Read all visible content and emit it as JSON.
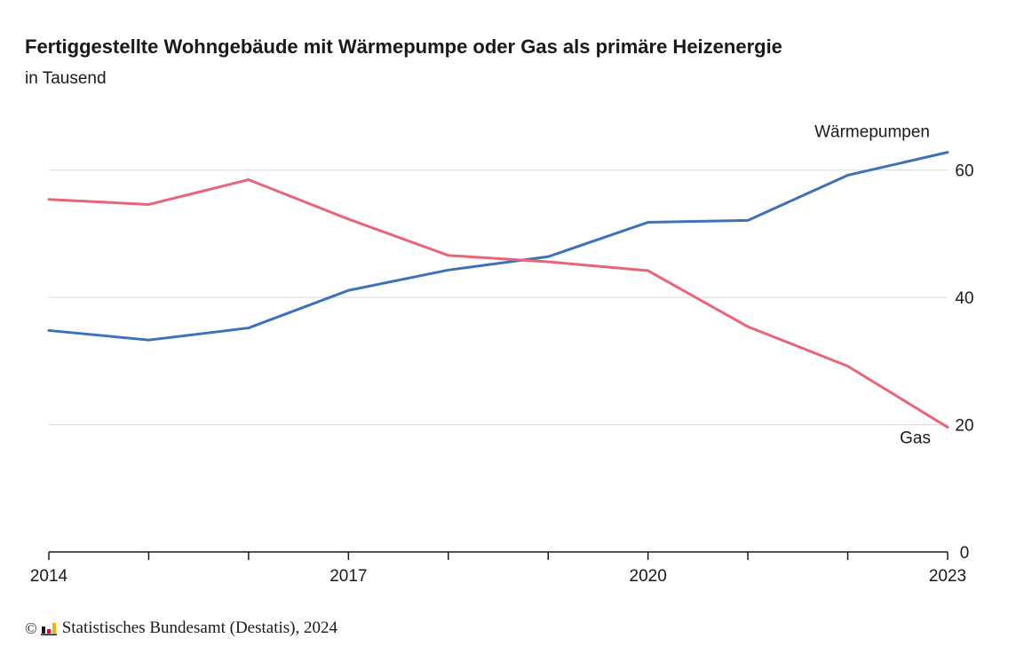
{
  "chart_data": {
    "type": "line",
    "title": "Fertiggestellte Wohngebäude mit Wärmepumpe oder Gas als primäre Heizenergie",
    "subtitle": "in Tausend",
    "x": [
      2014,
      2015,
      2016,
      2017,
      2018,
      2019,
      2020,
      2021,
      2022,
      2023
    ],
    "x_tick_labels": [
      "2014",
      "2017",
      "2020",
      "2023"
    ],
    "y_tick_labels": [
      "0",
      "20",
      "40",
      "60"
    ],
    "ylim": [
      0,
      70
    ],
    "grid": true,
    "y_axis_position": "right",
    "series": [
      {
        "name": "Wärmepumpen",
        "color": "#3d72b8",
        "values": [
          34.8,
          33.3,
          35.2,
          41.1,
          44.3,
          46.4,
          51.8,
          52.1,
          59.2,
          62.8
        ]
      },
      {
        "name": "Gas",
        "color": "#ea6478",
        "values": [
          55.4,
          54.6,
          58.5,
          52.3,
          46.6,
          45.6,
          44.2,
          35.4,
          29.2,
          19.6
        ]
      }
    ]
  },
  "footer": {
    "copyright_symbol": "©",
    "source": "Statistisches Bundesamt (Destatis), 2024"
  },
  "logo_colors": [
    "#1a1a1a",
    "#e30613",
    "#f5b400"
  ]
}
